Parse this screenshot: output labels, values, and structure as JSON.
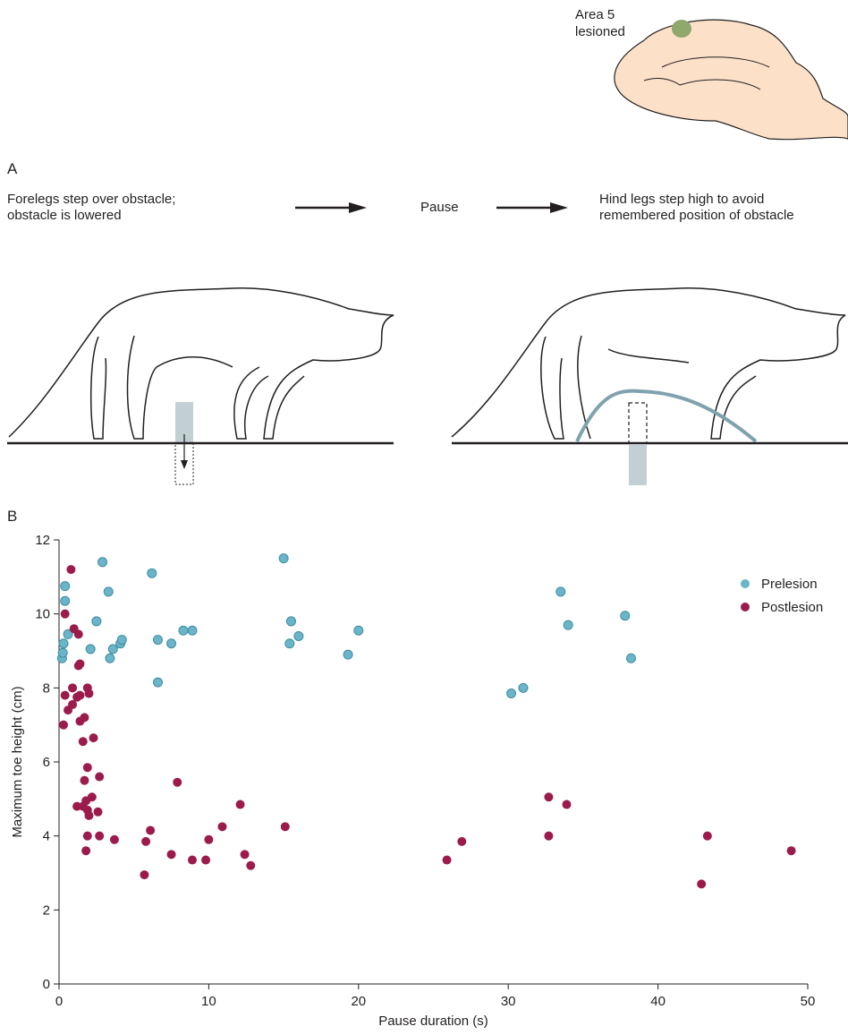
{
  "figure": {
    "lesion_label": [
      "Area 5",
      "lesioned"
    ],
    "panel_a": "A",
    "panel_b": "B",
    "step1": [
      "Forelegs step over obstacle;",
      "obstacle is lowered"
    ],
    "step2": "Pause",
    "step3": [
      "Hind legs step high to avoid",
      "remembered position of obstacle"
    ]
  },
  "chart_data": {
    "type": "scatter",
    "x_label": "Pause duration (s)",
    "y_label": "Maximum toe height (cm)",
    "xlim": [
      0,
      50
    ],
    "ylim": [
      0,
      12
    ],
    "xticks": [
      0,
      10,
      20,
      30,
      40,
      50
    ],
    "yticks": [
      0,
      2,
      4,
      6,
      8,
      10,
      12
    ],
    "legend": "upper right",
    "series": [
      {
        "name": "Prelesion",
        "color": "#6cb4c8",
        "x": [
          0.2,
          0.25,
          0.3,
          0.4,
          0.4,
          0.6,
          2.1,
          2.5,
          2.9,
          3.3,
          3.4,
          3.6,
          4.1,
          4.2,
          6.2,
          6.6,
          6.6,
          7.5,
          8.3,
          8.9,
          15,
          15.5,
          15.4,
          16,
          19.3,
          20,
          30.2,
          31,
          33.5,
          34,
          37.8,
          38.2
        ],
        "values": [
          8.8,
          8.95,
          9.2,
          10.75,
          10.35,
          9.45,
          9.05,
          9.8,
          11.4,
          10.6,
          8.8,
          9.05,
          9.2,
          9.3,
          11.1,
          8.15,
          9.3,
          9.2,
          9.55,
          9.55,
          11.5,
          9.8,
          9.2,
          9.4,
          8.9,
          9.55,
          7.85,
          8,
          10.6,
          9.7,
          9.95,
          8.8
        ]
      },
      {
        "name": "Postlesion",
        "color": "#9b1b4d",
        "x": [
          0.8,
          0.4,
          1.0,
          1.3,
          1.3,
          1.4,
          0.4,
          0.9,
          1.2,
          1.4,
          1.9,
          2.0,
          0.6,
          0.9,
          1.4,
          1.7,
          0.3,
          1.6,
          2.3,
          1.9,
          2.7,
          1.7,
          2.2,
          1.2,
          1.6,
          1.8,
          1.9,
          2.0,
          2.6,
          1.9,
          2.7,
          1.8,
          3.7,
          5.7,
          5.8,
          6.1,
          7.9,
          7.5,
          8.9,
          9.8,
          10,
          10.9,
          12.1,
          12.4,
          12.8,
          15.1,
          25.9,
          26.9,
          32.7,
          32.7,
          33.9,
          42.9,
          43.3,
          48.9
        ],
        "values": [
          11.2,
          10,
          9.6,
          9.45,
          8.6,
          8.65,
          7.8,
          8.0,
          7.75,
          7.8,
          8.0,
          7.85,
          7.4,
          7.55,
          7.1,
          7.2,
          7.0,
          6.55,
          6.65,
          5.85,
          5.6,
          5.5,
          5.05,
          4.8,
          4.8,
          4.95,
          4.7,
          4.55,
          4.65,
          4.0,
          4.0,
          3.6,
          3.9,
          2.95,
          3.85,
          4.15,
          5.45,
          3.5,
          3.35,
          3.35,
          3.9,
          4.25,
          4.85,
          3.5,
          3.2,
          4.25,
          3.35,
          3.85,
          5.05,
          4.0,
          4.85,
          2.7,
          4.0,
          3.6
        ]
      }
    ]
  }
}
